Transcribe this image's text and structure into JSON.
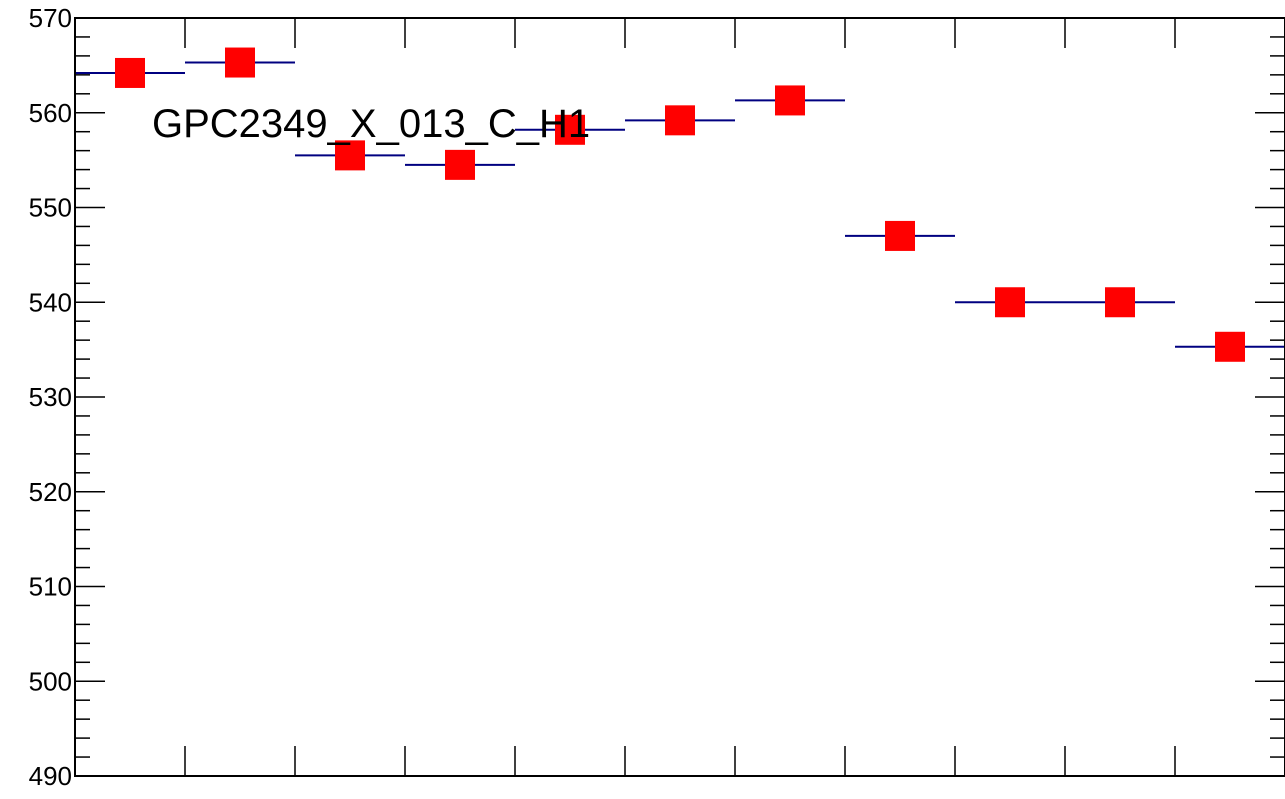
{
  "chart_data": {
    "type": "scatter",
    "title": "GPC2349_X_013_C_H1",
    "xlabel": "",
    "ylabel": "",
    "ylim": [
      490,
      570
    ],
    "y_ticks": [
      490,
      500,
      510,
      520,
      530,
      540,
      550,
      560,
      570
    ],
    "x_bins": 11,
    "marker": "square",
    "colors": {
      "marker": "#ff0000",
      "bin_line": "#000080",
      "axis": "#000000"
    },
    "series": [
      {
        "values": [
          564.2,
          565.3,
          555.5,
          554.5,
          558.2,
          559.2,
          561.3,
          547.0,
          540.0,
          540.0,
          535.3
        ]
      }
    ]
  }
}
